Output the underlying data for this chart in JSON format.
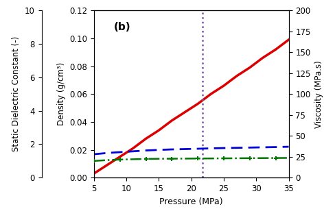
{
  "title": "(b)",
  "xlabel": "Pressure (MPa)",
  "ylabel_left": "Density (g/cm³)",
  "ylabel_right": "Viscosity (MPa.s)",
  "ylabel_far_left": "Static Dielectric Constant (-)",
  "xlim": [
    5,
    35
  ],
  "ylim_density": [
    0.0,
    0.12
  ],
  "ylim_dielectric": [
    0,
    10
  ],
  "ylim_viscosity": [
    0,
    200
  ],
  "x_ticks": [
    5,
    10,
    15,
    20,
    25,
    30,
    35
  ],
  "pressure": [
    5,
    7,
    9,
    11,
    13,
    15,
    17,
    19,
    21,
    23,
    25,
    27,
    29,
    31,
    33,
    35
  ],
  "density": [
    0.003,
    0.009,
    0.015,
    0.021,
    0.028,
    0.034,
    0.041,
    0.047,
    0.053,
    0.06,
    0.066,
    0.073,
    0.079,
    0.086,
    0.092,
    0.099
  ],
  "dielectric_vals": [
    1.0,
    1.05,
    1.08,
    1.1,
    1.12,
    1.13,
    1.135,
    1.14,
    1.145,
    1.15,
    1.155,
    1.16,
    1.165,
    1.17,
    1.175,
    1.18
  ],
  "viscosity_vals": [
    28,
    29.5,
    30.5,
    31.5,
    32.5,
    33.2,
    33.8,
    34.2,
    34.6,
    35.0,
    35.4,
    35.7,
    36.0,
    36.3,
    36.6,
    37.0
  ],
  "vline_x": 21.7,
  "density_color": "#dd0000",
  "dielectric_color": "#007700",
  "viscosity_color": "#0000dd",
  "vline_color": "#7755aa",
  "background_color": "#ffffff"
}
